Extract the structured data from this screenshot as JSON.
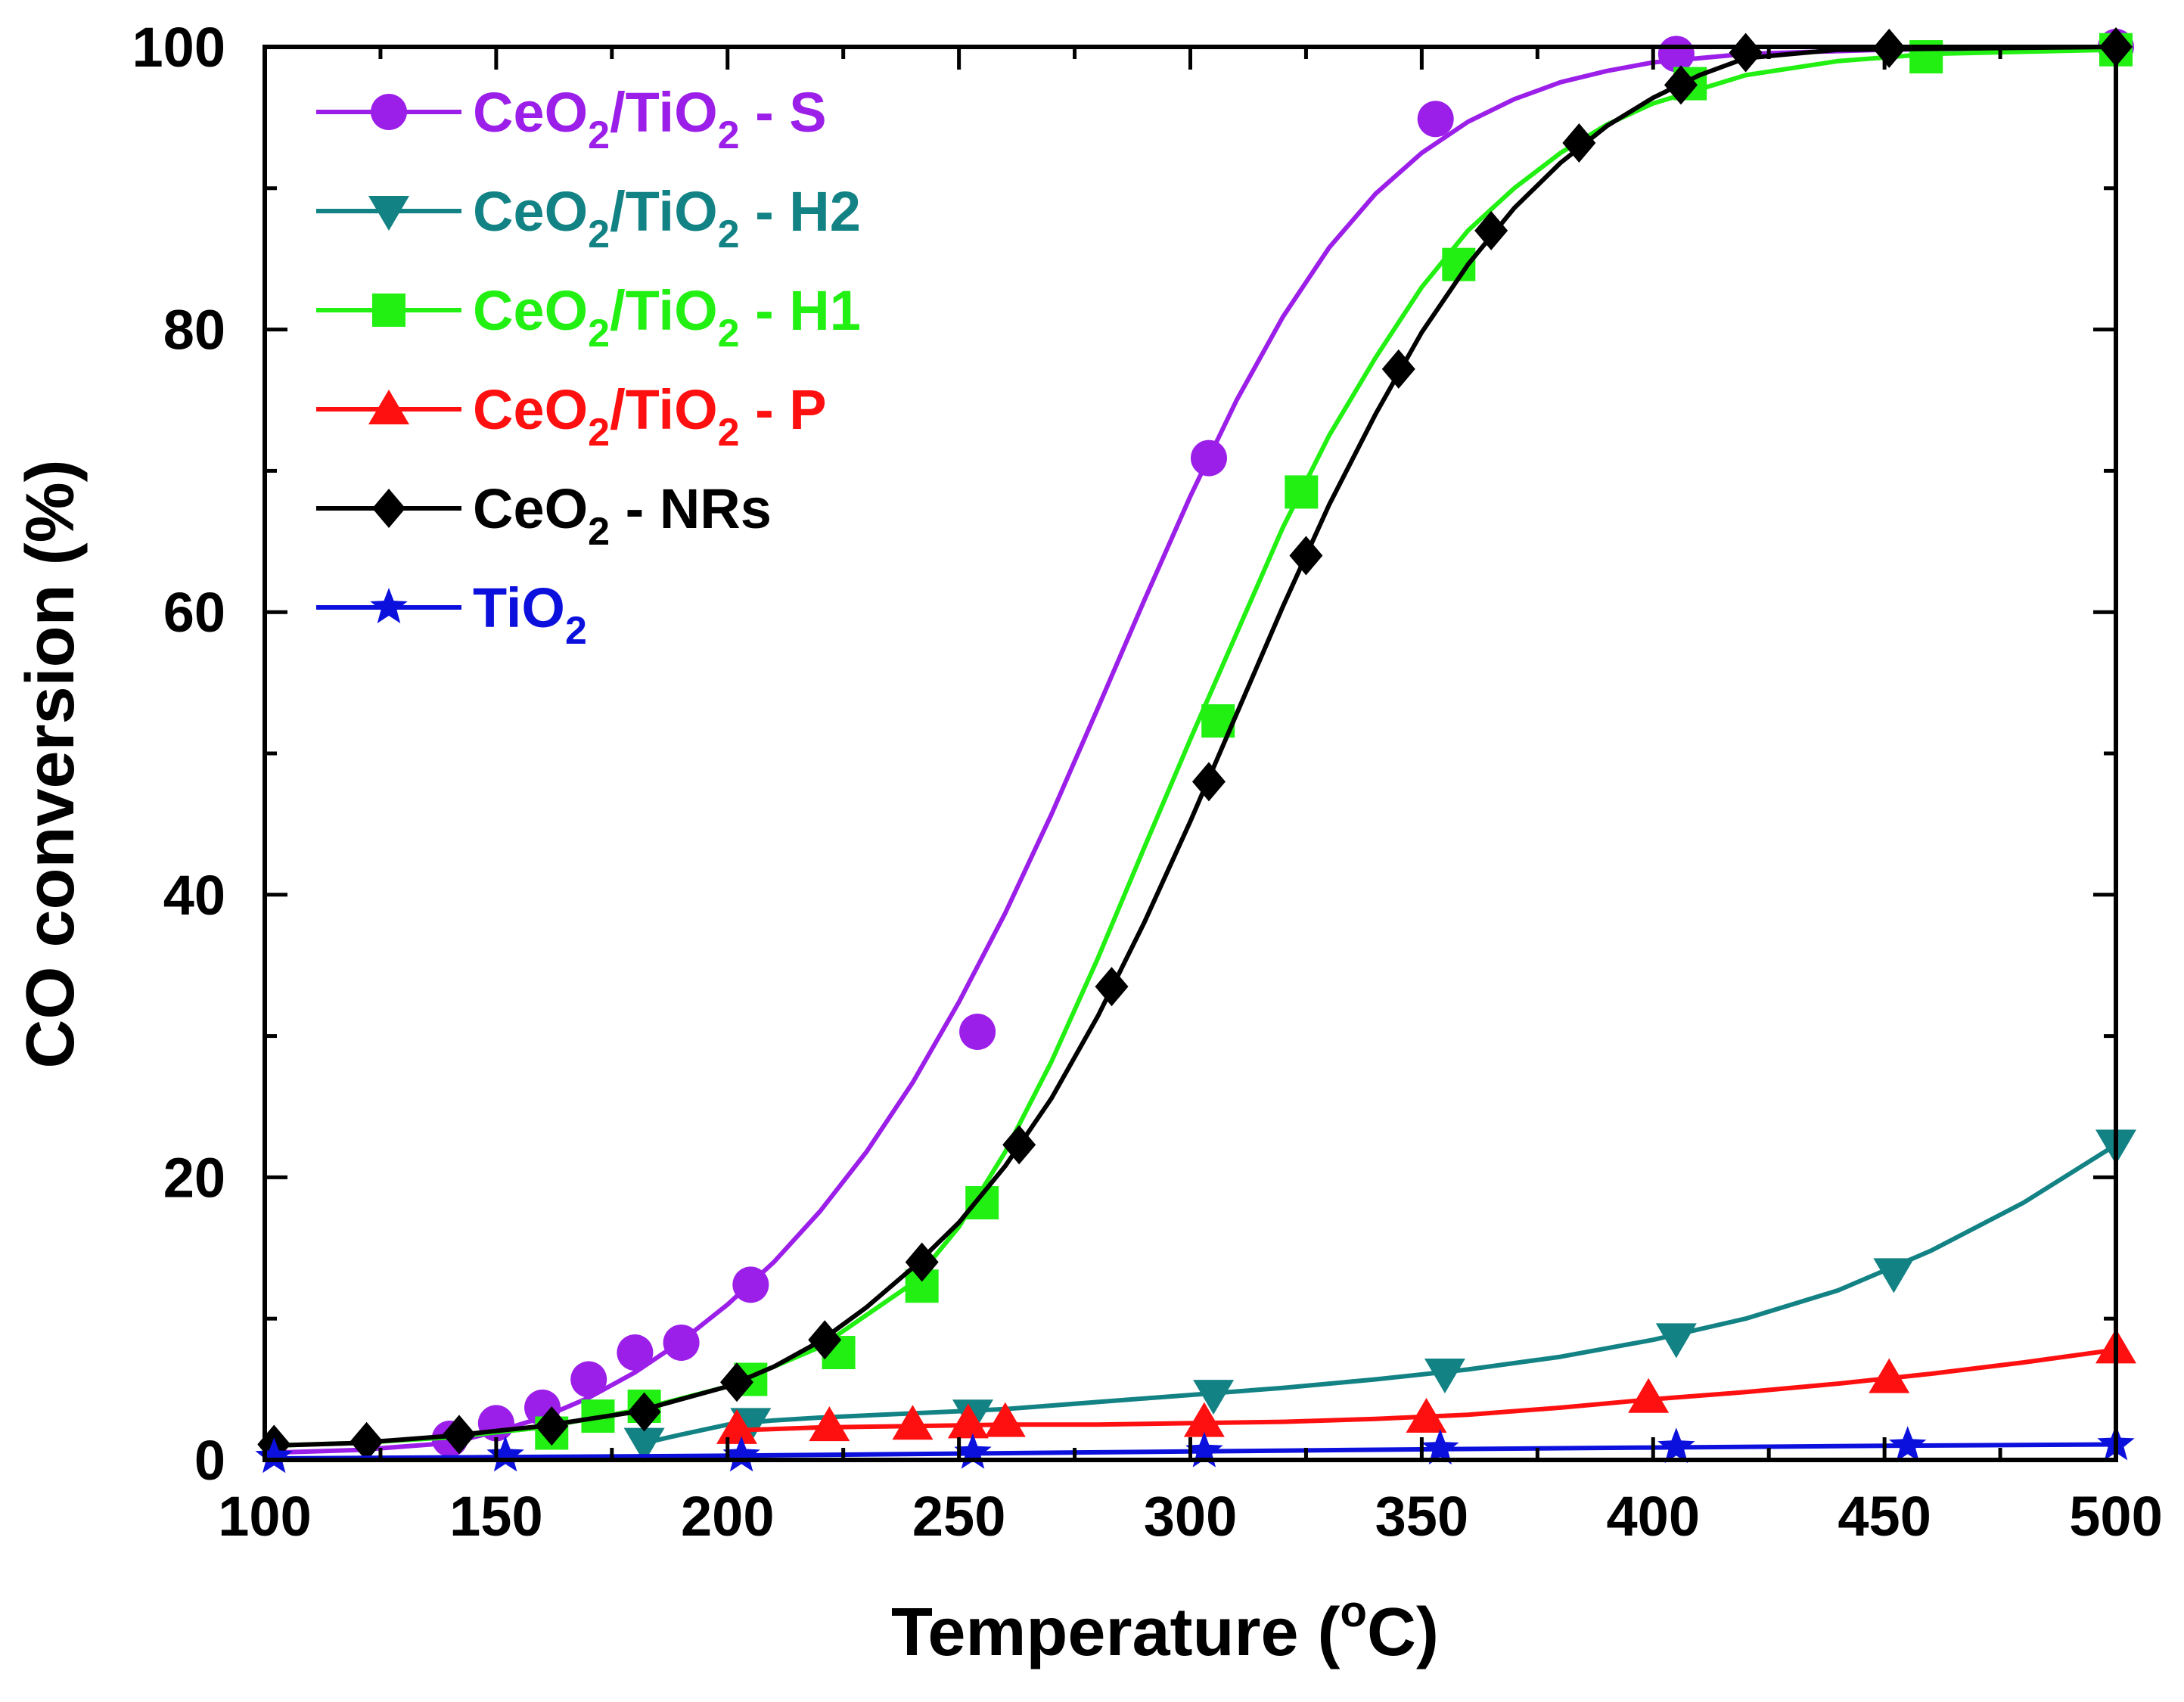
{
  "chart_data": {
    "type": "line",
    "title": "",
    "xlabel": "Temperature (°C)",
    "ylabel": "CO conversion (%)",
    "xlim": [
      100,
      500
    ],
    "ylim": [
      0,
      100
    ],
    "xticks": [
      100,
      150,
      200,
      250,
      300,
      350,
      400,
      450,
      500
    ],
    "yticks": [
      0,
      20,
      40,
      60,
      80,
      100
    ],
    "legend_position": "top-left",
    "series": [
      {
        "name": "CeO2/TiO2 - S",
        "color": "#9b1fe8",
        "marker": "circle",
        "points": [
          [
            140,
            1.5
          ],
          [
            150,
            2.6
          ],
          [
            160,
            3.7
          ],
          [
            170,
            5.7
          ],
          [
            180,
            7.6
          ],
          [
            190,
            8.3
          ],
          [
            205,
            12.4
          ],
          [
            254,
            30.3
          ],
          [
            304,
            70.9
          ],
          [
            353,
            94.9
          ],
          [
            405,
            99.5
          ],
          [
            500,
            100
          ]
        ],
        "fit": [
          [
            100,
            0.5
          ],
          [
            120,
            0.7
          ],
          [
            140,
            1.2
          ],
          [
            150,
            2.0
          ],
          [
            160,
            3.0
          ],
          [
            170,
            4.4
          ],
          [
            180,
            6.2
          ],
          [
            190,
            8.4
          ],
          [
            200,
            11.0
          ],
          [
            210,
            14.0
          ],
          [
            220,
            17.6
          ],
          [
            230,
            21.8
          ],
          [
            240,
            26.7
          ],
          [
            250,
            32.4
          ],
          [
            260,
            38.7
          ],
          [
            270,
            45.7
          ],
          [
            280,
            53.2
          ],
          [
            290,
            60.8
          ],
          [
            300,
            68.2
          ],
          [
            310,
            75.0
          ],
          [
            320,
            80.9
          ],
          [
            330,
            85.8
          ],
          [
            340,
            89.6
          ],
          [
            350,
            92.5
          ],
          [
            360,
            94.7
          ],
          [
            370,
            96.3
          ],
          [
            380,
            97.5
          ],
          [
            390,
            98.3
          ],
          [
            400,
            98.9
          ],
          [
            420,
            99.5
          ],
          [
            450,
            99.8
          ],
          [
            500,
            100
          ]
        ]
      },
      {
        "name": "CeO2/TiO2 - H2",
        "color": "#138284",
        "marker": "triangle-down",
        "points": [
          [
            182,
            1.2
          ],
          [
            205,
            2.6
          ],
          [
            253,
            3.2
          ],
          [
            305,
            4.6
          ],
          [
            355,
            6.1
          ],
          [
            405,
            8.6
          ],
          [
            452,
            13.2
          ],
          [
            500,
            22.3
          ]
        ],
        "fit": [
          [
            182,
            1.2
          ],
          [
            190,
            1.8
          ],
          [
            200,
            2.5
          ],
          [
            210,
            2.8
          ],
          [
            220,
            3.0
          ],
          [
            240,
            3.3
          ],
          [
            260,
            3.6
          ],
          [
            280,
            4.1
          ],
          [
            300,
            4.6
          ],
          [
            320,
            5.1
          ],
          [
            340,
            5.7
          ],
          [
            360,
            6.4
          ],
          [
            380,
            7.3
          ],
          [
            400,
            8.5
          ],
          [
            420,
            10.0
          ],
          [
            440,
            12.0
          ],
          [
            460,
            14.8
          ],
          [
            480,
            18.2
          ],
          [
            500,
            22.3
          ]
        ]
      },
      {
        "name": "CeO2/TiO2 - H1",
        "color": "#22f012",
        "marker": "square",
        "points": [
          [
            162,
            1.9
          ],
          [
            172,
            3.1
          ],
          [
            182,
            3.8
          ],
          [
            205,
            5.7
          ],
          [
            224,
            7.6
          ],
          [
            242,
            12.3
          ],
          [
            255,
            18.2
          ],
          [
            306,
            52.3
          ],
          [
            324,
            68.5
          ],
          [
            358,
            84.6
          ],
          [
            408,
            97.4
          ],
          [
            459,
            99.3
          ],
          [
            500,
            99.8
          ]
        ],
        "fit": [
          [
            100,
            1.0
          ],
          [
            120,
            1.2
          ],
          [
            140,
            1.6
          ],
          [
            160,
            2.3
          ],
          [
            180,
            3.5
          ],
          [
            200,
            5.2
          ],
          [
            220,
            8.0
          ],
          [
            240,
            12.5
          ],
          [
            250,
            16.5
          ],
          [
            260,
            21.8
          ],
          [
            270,
            28.2
          ],
          [
            280,
            35.5
          ],
          [
            290,
            43.3
          ],
          [
            300,
            51.0
          ],
          [
            310,
            58.5
          ],
          [
            320,
            66.0
          ],
          [
            330,
            72.5
          ],
          [
            340,
            78.0
          ],
          [
            350,
            83.0
          ],
          [
            360,
            87.0
          ],
          [
            370,
            90.0
          ],
          [
            380,
            92.5
          ],
          [
            390,
            94.5
          ],
          [
            400,
            96.0
          ],
          [
            420,
            98.0
          ],
          [
            440,
            99.0
          ],
          [
            460,
            99.5
          ],
          [
            500,
            99.8
          ]
        ]
      },
      {
        "name": "CeO2/TiO2 - P",
        "color": "#ff1010",
        "marker": "triangle-up",
        "points": [
          [
            202,
            2.2
          ],
          [
            222,
            2.4
          ],
          [
            240,
            2.5
          ],
          [
            252,
            2.6
          ],
          [
            260,
            2.7
          ],
          [
            303,
            2.7
          ],
          [
            351,
            3.0
          ],
          [
            399,
            4.4
          ],
          [
            451,
            5.8
          ],
          [
            500,
            7.9
          ]
        ],
        "fit": [
          [
            202,
            2.1
          ],
          [
            220,
            2.3
          ],
          [
            240,
            2.4
          ],
          [
            260,
            2.5
          ],
          [
            280,
            2.5
          ],
          [
            300,
            2.6
          ],
          [
            320,
            2.7
          ],
          [
            340,
            2.9
          ],
          [
            360,
            3.2
          ],
          [
            380,
            3.7
          ],
          [
            400,
            4.3
          ],
          [
            420,
            4.8
          ],
          [
            440,
            5.4
          ],
          [
            460,
            6.1
          ],
          [
            480,
            6.9
          ],
          [
            500,
            7.8
          ]
        ]
      },
      {
        "name": "CeO2 - NRs",
        "color": "#000000",
        "marker": "diamond",
        "points": [
          [
            102,
            1.1
          ],
          [
            122,
            1.3
          ],
          [
            142,
            1.8
          ],
          [
            162,
            2.4
          ],
          [
            182,
            3.4
          ],
          [
            202,
            5.5
          ],
          [
            221,
            8.5
          ],
          [
            242,
            14.0
          ],
          [
            263,
            22.3
          ],
          [
            283,
            33.5
          ],
          [
            304,
            48.0
          ],
          [
            325,
            64.0
          ],
          [
            345,
            77.2
          ],
          [
            365,
            87.0
          ],
          [
            384,
            93.2
          ],
          [
            406,
            97.3
          ],
          [
            420,
            99.6
          ],
          [
            451,
            99.9
          ],
          [
            500,
            100
          ]
        ],
        "fit": [
          [
            100,
            1.0
          ],
          [
            120,
            1.2
          ],
          [
            140,
            1.7
          ],
          [
            160,
            2.4
          ],
          [
            180,
            3.4
          ],
          [
            200,
            5.2
          ],
          [
            210,
            6.6
          ],
          [
            220,
            8.4
          ],
          [
            230,
            10.8
          ],
          [
            240,
            13.6
          ],
          [
            250,
            16.8
          ],
          [
            260,
            20.8
          ],
          [
            270,
            25.6
          ],
          [
            280,
            31.4
          ],
          [
            290,
            38.0
          ],
          [
            300,
            45.2
          ],
          [
            310,
            52.8
          ],
          [
            320,
            60.4
          ],
          [
            330,
            67.6
          ],
          [
            340,
            74.0
          ],
          [
            350,
            79.8
          ],
          [
            360,
            84.6
          ],
          [
            370,
            88.6
          ],
          [
            380,
            91.8
          ],
          [
            390,
            94.4
          ],
          [
            400,
            96.4
          ],
          [
            410,
            98.0
          ],
          [
            420,
            99.2
          ],
          [
            440,
            99.8
          ],
          [
            500,
            100
          ]
        ]
      },
      {
        "name": "TiO2",
        "color": "#0c10dd",
        "marker": "star",
        "points": [
          [
            102,
            0.2
          ],
          [
            152,
            0.3
          ],
          [
            203,
            0.3
          ],
          [
            253,
            0.5
          ],
          [
            303,
            0.6
          ],
          [
            354,
            0.8
          ],
          [
            405,
            0.9
          ],
          [
            455,
            1.0
          ],
          [
            500,
            1.1
          ]
        ],
        "fit": [
          [
            100,
            0.1
          ],
          [
            150,
            0.2
          ],
          [
            200,
            0.3
          ],
          [
            250,
            0.45
          ],
          [
            300,
            0.6
          ],
          [
            350,
            0.75
          ],
          [
            400,
            0.88
          ],
          [
            450,
            1.0
          ],
          [
            500,
            1.1
          ]
        ]
      }
    ]
  },
  "legend": [
    {
      "base": "CeO",
      "sub1": "2",
      "mid": "/TiO",
      "sub2": "2",
      "tail": " - S"
    },
    {
      "base": "CeO",
      "sub1": "2",
      "mid": "/TiO",
      "sub2": "2",
      "tail": " - H2"
    },
    {
      "base": "CeO",
      "sub1": "2",
      "mid": "/TiO",
      "sub2": "2",
      "tail": " - H1"
    },
    {
      "base": "CeO",
      "sub1": "2",
      "mid": "/TiO",
      "sub2": "2",
      "tail": " - P"
    },
    {
      "base": "CeO",
      "sub1": "2",
      "mid": "",
      "sub2": "",
      "tail": " - NRs"
    },
    {
      "base": "TiO",
      "sub1": "2",
      "mid": "",
      "sub2": "",
      "tail": ""
    }
  ],
  "axis_titles": {
    "x_main": "Temperature (",
    "x_sup": "o",
    "x_tail": "C)",
    "y": "CO conversion (%)"
  }
}
